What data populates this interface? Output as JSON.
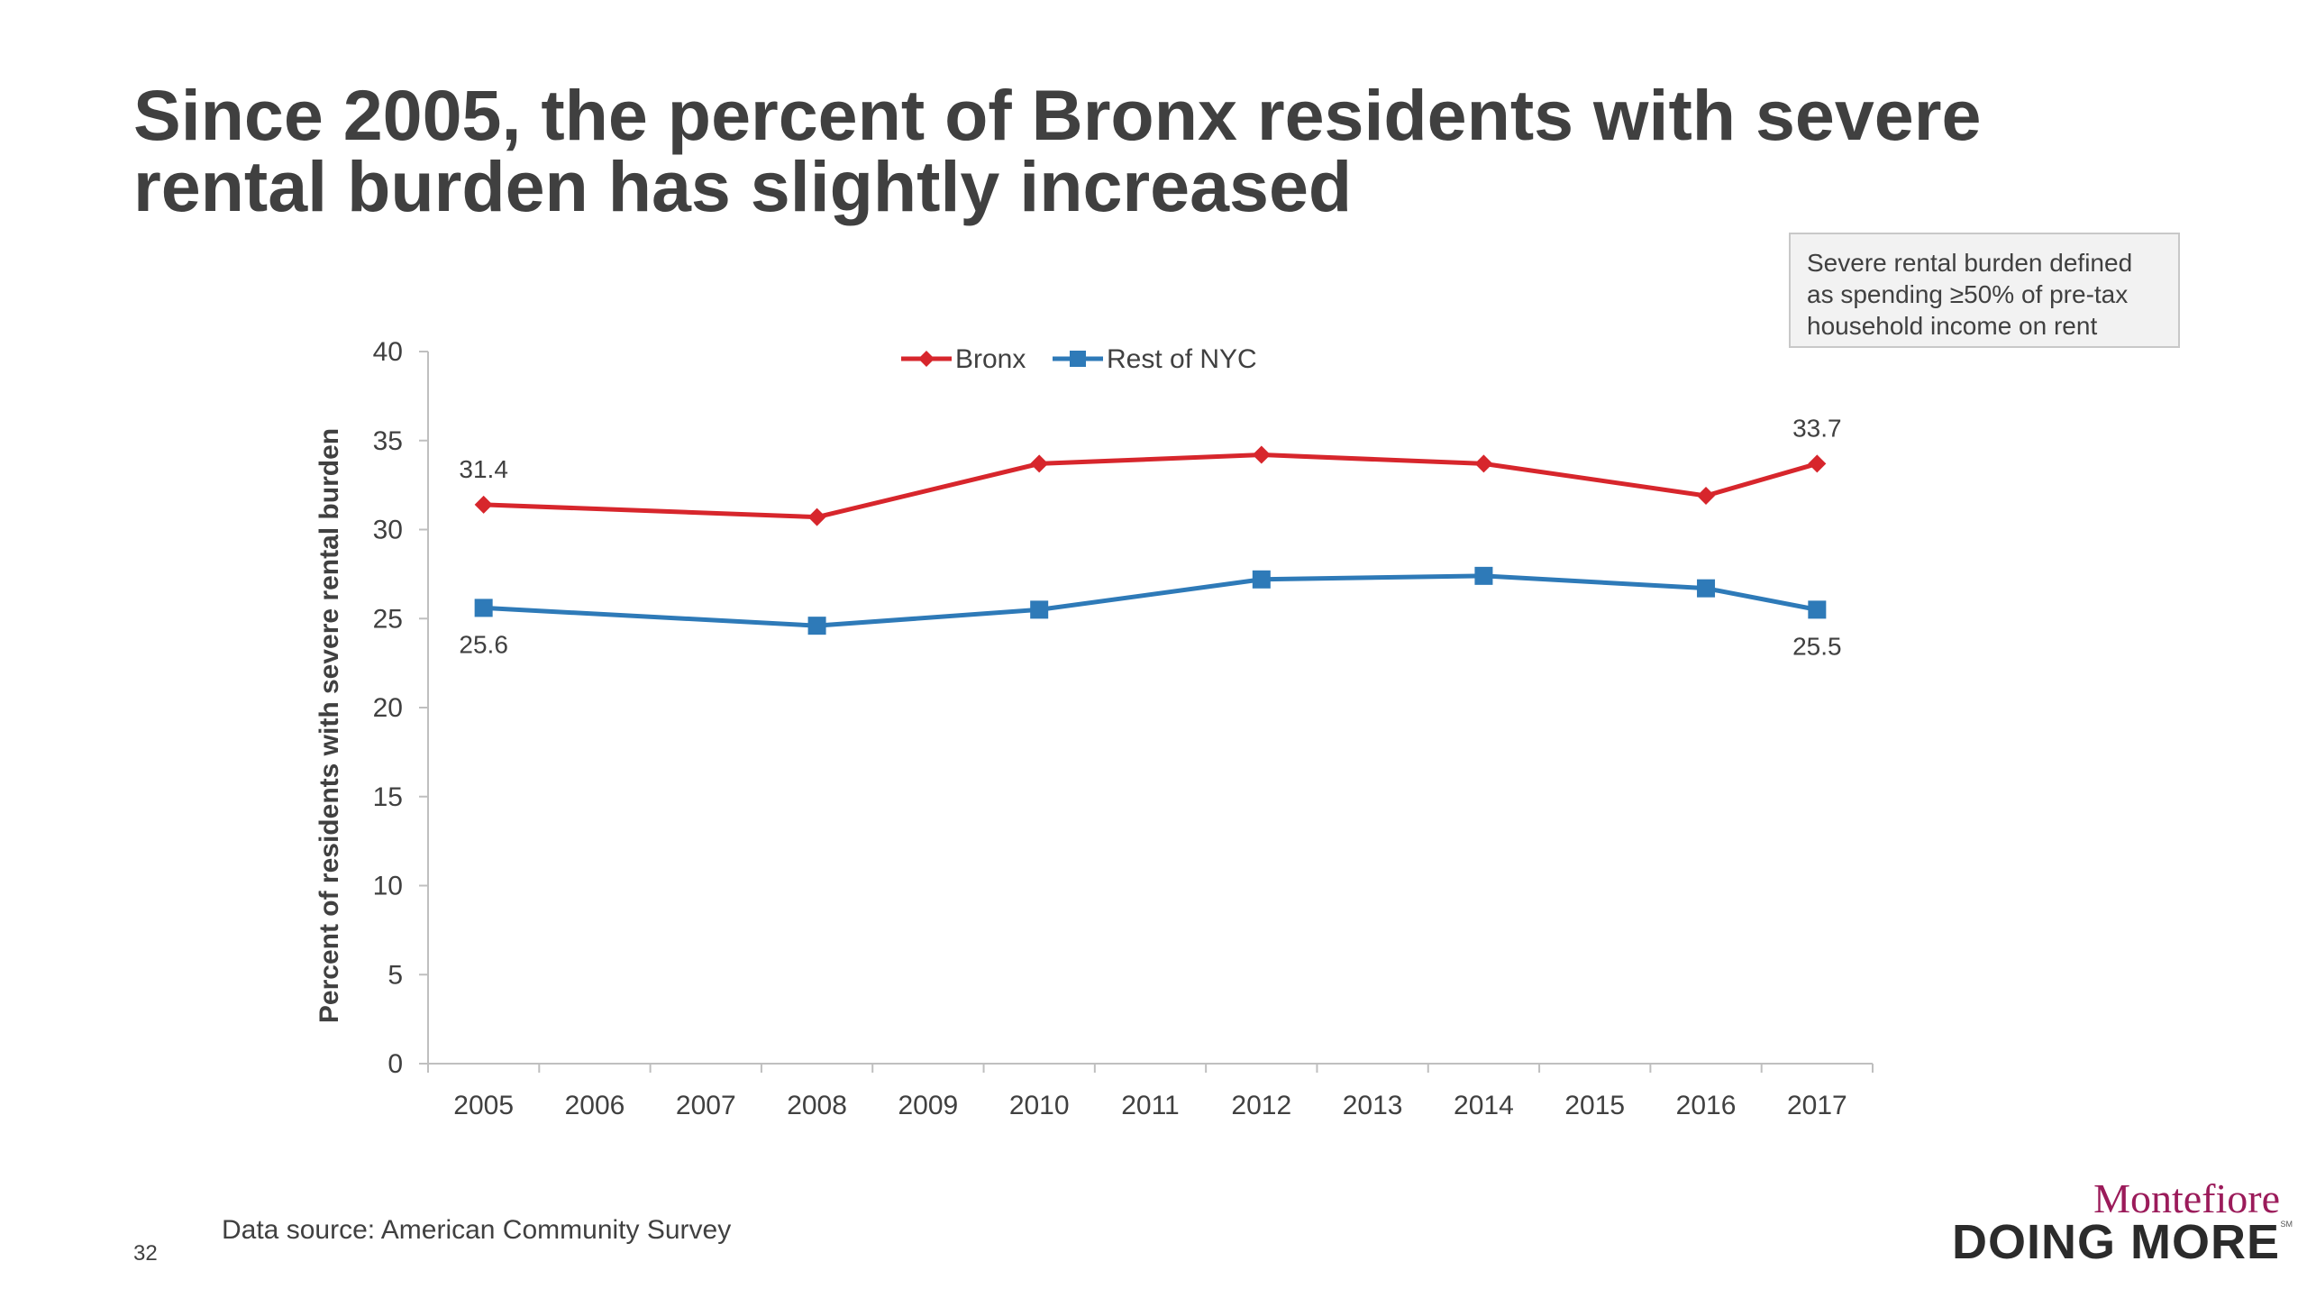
{
  "slide": {
    "title_lines": [
      "Since 2005, the percent of Bronx residents with severe",
      "rental burden has slightly increased"
    ],
    "note_lines": [
      "Severe rental burden defined",
      "as spending ≥50% of pre-tax",
      "household income on rent"
    ],
    "source": "Data source: American Community Survey",
    "page_number": "32",
    "logo": {
      "top": "Montefiore",
      "bottom": "DOING MORE",
      "mark": "SM"
    }
  },
  "colors": {
    "bronx": "#d7262c",
    "rest_of_nyc": "#2e7ab8",
    "text": "#404040",
    "axis": "#bfbfbf"
  },
  "chart_data": {
    "type": "line",
    "title": "",
    "xlabel": "",
    "ylabel": "Percent of residents with severe rental burden",
    "categories": [
      "2005",
      "2006",
      "2007",
      "2008",
      "2009",
      "2010",
      "2011",
      "2012",
      "2013",
      "2014",
      "2015",
      "2016",
      "2017"
    ],
    "ylim": [
      0,
      40
    ],
    "yticks": [
      0,
      5,
      10,
      15,
      20,
      25,
      30,
      35,
      40
    ],
    "grid": false,
    "legend_position": "top-center",
    "series": [
      {
        "name": "Bronx",
        "marker": "diamond",
        "x": [
          "2005",
          "2008",
          "2010",
          "2012",
          "2014",
          "2016",
          "2017"
        ],
        "values": [
          31.4,
          30.7,
          33.7,
          34.2,
          33.7,
          31.9,
          33.7
        ],
        "data_labels": {
          "2005": "31.4",
          "2017": "33.7"
        }
      },
      {
        "name": "Rest of NYC",
        "marker": "square",
        "x": [
          "2005",
          "2008",
          "2010",
          "2012",
          "2014",
          "2016",
          "2017"
        ],
        "values": [
          25.6,
          24.6,
          25.5,
          27.2,
          27.4,
          26.7,
          25.5
        ],
        "data_labels": {
          "2005": "25.6",
          "2017": "25.5"
        }
      }
    ]
  }
}
